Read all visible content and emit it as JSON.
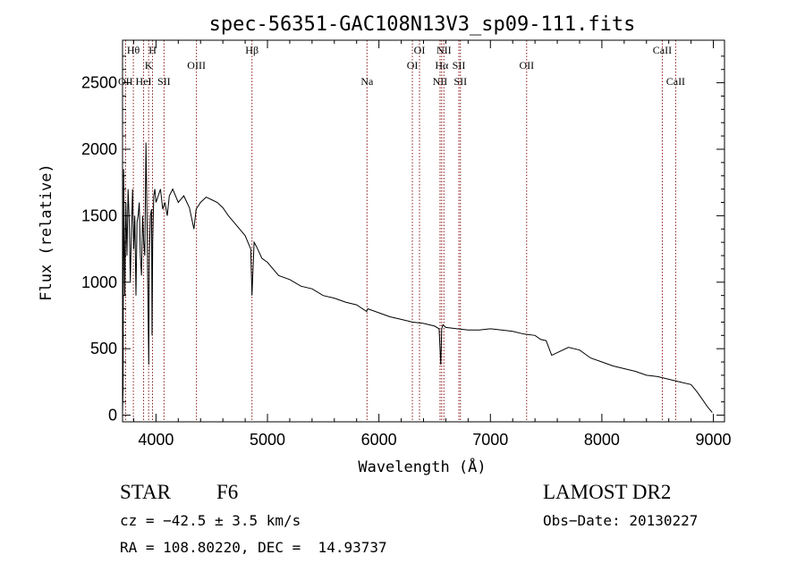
{
  "chart_data": {
    "type": "line",
    "title": "spec-56351-GAC108N13V3_sp09-111.fits",
    "xlabel": "Wavelength (Å)",
    "ylabel": "Flux (relative)",
    "xlim": [
      3700,
      9100
    ],
    "ylim": [
      -50,
      2820
    ],
    "x_ticks": [
      4000,
      5000,
      6000,
      7000,
      8000,
      9000
    ],
    "y_ticks": [
      0,
      500,
      1000,
      1500,
      2000,
      2500
    ],
    "grid": false,
    "legend": "none",
    "line_color": "#000000",
    "marker_color": "#8b1a1a",
    "series": [
      {
        "x": [
          3700,
          3705,
          3710,
          3720,
          3730,
          3740,
          3750,
          3760,
          3770,
          3780,
          3790,
          3800,
          3810,
          3820,
          3830,
          3840,
          3850,
          3860,
          3870,
          3880,
          3890,
          3900,
          3910,
          3920,
          3930,
          3935,
          3940,
          3950,
          3960,
          3965,
          3970,
          3980,
          3990,
          4000,
          4020,
          4040,
          4060,
          4080,
          4101,
          4120,
          4150,
          4200,
          4250,
          4300,
          4340,
          4360,
          4400,
          4450,
          4500,
          4550,
          4600,
          4650,
          4700,
          4750,
          4800,
          4850,
          4861,
          4880,
          4900,
          4950,
          5000,
          5100,
          5200,
          5300,
          5400,
          5500,
          5600,
          5700,
          5800,
          5890,
          5900,
          6000,
          6100,
          6200,
          6300,
          6400,
          6500,
          6540,
          6555,
          6563,
          6575,
          6600,
          6700,
          6800,
          6900,
          7000,
          7100,
          7200,
          7300,
          7400,
          7450,
          7500,
          7550,
          7600,
          7700,
          7800,
          7900,
          8000,
          8100,
          8200,
          8300,
          8400,
          8500,
          8600,
          8700,
          8800,
          8850,
          8900,
          8950,
          8990
        ],
        "y": [
          20,
          200,
          1850,
          900,
          1600,
          1200,
          1700,
          1450,
          1000,
          1400,
          1700,
          1250,
          1500,
          900,
          1450,
          1500,
          1600,
          1200,
          1050,
          1500,
          1300,
          1200,
          2050,
          1450,
          700,
          380,
          1200,
          1500,
          1550,
          600,
          1300,
          1650,
          1700,
          1600,
          1650,
          1700,
          1550,
          1600,
          1500,
          1650,
          1700,
          1600,
          1650,
          1560,
          1400,
          1550,
          1600,
          1640,
          1620,
          1600,
          1560,
          1500,
          1450,
          1400,
          1350,
          1250,
          900,
          1300,
          1270,
          1180,
          1150,
          1050,
          1020,
          970,
          950,
          900,
          880,
          850,
          830,
          780,
          800,
          770,
          740,
          720,
          700,
          690,
          670,
          650,
          380,
          650,
          680,
          660,
          650,
          640,
          640,
          650,
          640,
          630,
          610,
          600,
          570,
          560,
          450,
          470,
          510,
          490,
          430,
          400,
          370,
          350,
          330,
          300,
          290,
          270,
          250,
          230,
          180,
          120,
          60,
          20
        ]
      }
    ],
    "lines": [
      {
        "label": "Hθ",
        "x": 3797,
        "row": 1
      },
      {
        "label": "OII",
        "x": 3727,
        "row": 3
      },
      {
        "label": "HeI",
        "x": 3889,
        "row": 3
      },
      {
        "label": "K",
        "x": 3934,
        "row": 2
      },
      {
        "label": "H",
        "x": 3969,
        "row": 1
      },
      {
        "label": "SII",
        "x": 4072,
        "row": 3
      },
      {
        "label": "OIII",
        "x": 4363,
        "row": 2
      },
      {
        "label": "Hβ",
        "x": 4861,
        "row": 1
      },
      {
        "label": "Na",
        "x": 5893,
        "row": 3
      },
      {
        "label": "OI",
        "x": 6300,
        "row": 2
      },
      {
        "label": "OI",
        "x": 6364,
        "row": 1
      },
      {
        "label": "NII",
        "x": 6548,
        "row": 3
      },
      {
        "label": "Hα",
        "x": 6563,
        "row": 2
      },
      {
        "label": "NII",
        "x": 6583,
        "row": 1
      },
      {
        "label": "SII",
        "x": 6717,
        "row": 2
      },
      {
        "label": "SII",
        "x": 6731,
        "row": 3
      },
      {
        "label": "OII",
        "x": 7325,
        "row": 2
      },
      {
        "label": "CaII",
        "x": 8542,
        "row": 1
      },
      {
        "label": "CaII",
        "x": 8662,
        "row": 3
      }
    ]
  },
  "info": {
    "object_class": "STAR",
    "subclass": "F6",
    "survey": "LAMOST DR2",
    "redshift": "cz = −42.5 ± 3.5 km/s",
    "obs_date": "Obs−Date: 20130227",
    "coords": "RA = 108.80220, DEC =  14.93737"
  }
}
